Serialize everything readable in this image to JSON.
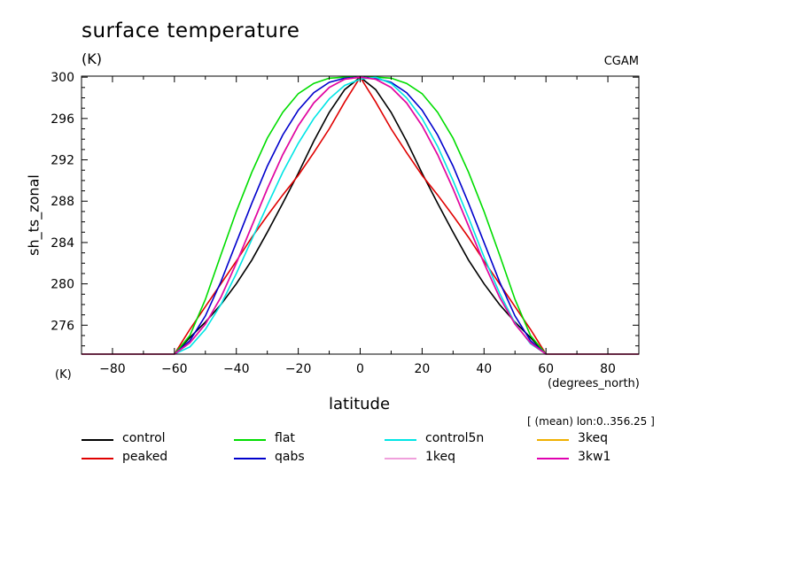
{
  "chart_data": {
    "type": "line",
    "title": "surface temperature",
    "unit_top": "(K)",
    "source": "CGAM",
    "ylabel": "sh_ts_zonal",
    "unit_bottom": "(K)",
    "xlabel": "latitude",
    "x_unit": "(degrees_north)",
    "note": "[ (mean) lon:0..356.25 ]",
    "xlim": [
      -90,
      90
    ],
    "ylim": [
      273.2,
      300.1
    ],
    "x_ticks": [
      -80,
      -60,
      -40,
      -20,
      0,
      20,
      40,
      60,
      80
    ],
    "y_ticks": [
      276,
      280,
      284,
      288,
      292,
      296,
      300
    ],
    "x": [
      -90,
      -85,
      -80,
      -75,
      -70,
      -65,
      -60,
      -55,
      -50,
      -45,
      -40,
      -35,
      -30,
      -25,
      -20,
      -15,
      -10,
      -5,
      0,
      5,
      10,
      15,
      20,
      25,
      30,
      35,
      40,
      45,
      50,
      55,
      60,
      65,
      70,
      75,
      80,
      85,
      90
    ],
    "series": [
      {
        "name": "control",
        "color": "#000000",
        "values": [
          273.2,
          273.2,
          273.2,
          273.2,
          273.2,
          273.2,
          273.2,
          274.8,
          276.3,
          278.0,
          280.0,
          282.3,
          285.0,
          287.8,
          290.7,
          293.8,
          296.6,
          298.8,
          300.0,
          298.8,
          296.6,
          293.8,
          290.7,
          287.8,
          285.0,
          282.3,
          280.0,
          278.0,
          276.3,
          274.8,
          273.2,
          273.2,
          273.2,
          273.2,
          273.2,
          273.2,
          273.2
        ]
      },
      {
        "name": "peaked",
        "color": "#e00000",
        "values": [
          273.2,
          273.2,
          273.2,
          273.2,
          273.2,
          273.2,
          273.2,
          275.6,
          277.8,
          280.0,
          282.2,
          284.5,
          286.6,
          288.6,
          290.5,
          292.7,
          295.0,
          297.6,
          300.0,
          297.6,
          295.0,
          292.7,
          290.5,
          288.6,
          286.6,
          284.5,
          282.2,
          280.0,
          277.8,
          275.6,
          273.2,
          273.2,
          273.2,
          273.2,
          273.2,
          273.2,
          273.2
        ]
      },
      {
        "name": "flat",
        "color": "#00dd00",
        "values": [
          273.2,
          273.2,
          273.2,
          273.2,
          273.2,
          273.2,
          273.2,
          275.0,
          278.5,
          282.8,
          287.0,
          290.8,
          294.1,
          296.6,
          298.4,
          299.4,
          299.9,
          300.0,
          300.0,
          300.0,
          299.9,
          299.4,
          298.4,
          296.6,
          294.1,
          290.8,
          287.0,
          282.8,
          278.5,
          275.0,
          273.2,
          273.2,
          273.2,
          273.2,
          273.2,
          273.2,
          273.2
        ]
      },
      {
        "name": "qabs",
        "color": "#0000cc",
        "values": [
          273.2,
          273.2,
          273.2,
          273.2,
          273.2,
          273.2,
          273.2,
          274.5,
          276.9,
          280.2,
          284.0,
          287.8,
          291.4,
          294.4,
          296.8,
          298.5,
          299.5,
          299.9,
          300.0,
          299.9,
          299.5,
          298.5,
          296.8,
          294.4,
          291.4,
          287.8,
          284.0,
          280.2,
          276.9,
          274.5,
          273.2,
          273.2,
          273.2,
          273.2,
          273.2,
          273.2,
          273.2
        ]
      },
      {
        "name": "control5n",
        "color": "#00e5e5",
        "values": [
          273.2,
          273.2,
          273.2,
          273.2,
          273.2,
          273.2,
          273.2,
          273.9,
          275.6,
          278.0,
          281.0,
          284.3,
          287.6,
          290.8,
          293.6,
          296.0,
          297.9,
          299.2,
          299.8,
          300.0,
          299.4,
          298.0,
          296.0,
          293.3,
          290.0,
          286.4,
          282.6,
          279.1,
          276.2,
          274.2,
          273.2,
          273.2,
          273.2,
          273.2,
          273.2,
          273.2,
          273.2
        ]
      },
      {
        "name": "1keq",
        "color": "#f0a0dc",
        "values": [
          273.2,
          273.2,
          273.2,
          273.2,
          273.2,
          273.2,
          273.2,
          274.3,
          276.1,
          278.7,
          282.0,
          285.6,
          289.2,
          292.5,
          295.3,
          297.5,
          299.0,
          299.8,
          300.0,
          299.8,
          299.0,
          297.5,
          295.3,
          292.5,
          289.2,
          285.6,
          282.0,
          278.7,
          276.1,
          274.3,
          273.2,
          273.2,
          273.2,
          273.2,
          273.2,
          273.2,
          273.2
        ]
      },
      {
        "name": "3keq",
        "color": "#f0b000",
        "values": [
          273.2,
          273.2,
          273.2,
          273.2,
          273.2,
          273.2,
          273.2,
          274.3,
          276.1,
          278.7,
          282.0,
          285.6,
          289.2,
          292.5,
          295.3,
          297.5,
          299.0,
          299.8,
          300.0,
          299.8,
          299.0,
          297.5,
          295.3,
          292.5,
          289.2,
          285.6,
          282.0,
          278.7,
          276.1,
          274.3,
          273.2,
          273.2,
          273.2,
          273.2,
          273.2,
          273.2,
          273.2
        ]
      },
      {
        "name": "3kw1",
        "color": "#e000b0",
        "values": [
          273.2,
          273.2,
          273.2,
          273.2,
          273.2,
          273.2,
          273.2,
          274.3,
          276.1,
          278.7,
          282.0,
          285.6,
          289.2,
          292.5,
          295.3,
          297.5,
          299.0,
          299.8,
          300.0,
          299.8,
          299.0,
          297.5,
          295.3,
          292.5,
          289.2,
          285.6,
          282.0,
          278.7,
          276.1,
          274.3,
          273.2,
          273.2,
          273.2,
          273.2,
          273.2,
          273.2,
          273.2
        ]
      }
    ],
    "legend_order": [
      "control",
      "flat",
      "control5n",
      "3keq",
      "peaked",
      "qabs",
      "1keq",
      "3kw1"
    ],
    "grid": false,
    "legend_placement": "bottom"
  }
}
